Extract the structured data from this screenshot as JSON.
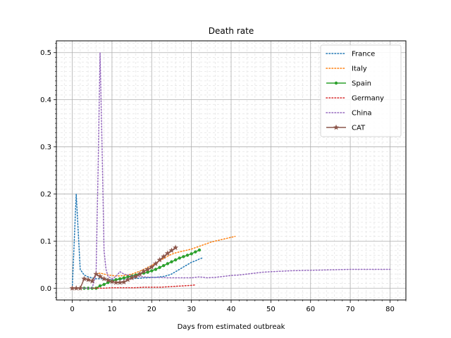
{
  "chart_data": {
    "type": "line",
    "title": "Death rate",
    "xlabel": "Days from estimated outbreak",
    "ylabel": "",
    "xlim": [
      -4,
      84
    ],
    "ylim": [
      -0.025,
      0.525
    ],
    "xticks": [
      0,
      10,
      20,
      30,
      40,
      50,
      60,
      70,
      80
    ],
    "yticks": [
      0.0,
      0.1,
      0.2,
      0.3,
      0.4,
      0.5
    ],
    "xtick_labels": [
      "0",
      "10",
      "20",
      "30",
      "40",
      "50",
      "60",
      "70",
      "80"
    ],
    "ytick_labels": [
      "0.0",
      "0.1",
      "0.2",
      "0.3",
      "0.4",
      "0.5"
    ],
    "grid": true,
    "minor_grid": true,
    "legend_position": "top-right",
    "series": [
      {
        "name": "France",
        "color": "#1f77b4",
        "style": "dotted",
        "marker": "none",
        "x": [
          0,
          1,
          2,
          3,
          4,
          5,
          6,
          7,
          8,
          9,
          10,
          11,
          12,
          13,
          14,
          15,
          16,
          17,
          18,
          19,
          20,
          21,
          22,
          23,
          24,
          25,
          26,
          27,
          28,
          29,
          30,
          31,
          32,
          33
        ],
        "y": [
          0.0,
          0.2,
          0.04,
          0.028,
          0.024,
          0.022,
          0.02,
          0.02,
          0.02,
          0.019,
          0.018,
          0.018,
          0.019,
          0.019,
          0.02,
          0.02,
          0.021,
          0.021,
          0.022,
          0.022,
          0.023,
          0.023,
          0.024,
          0.025,
          0.027,
          0.03,
          0.035,
          0.04,
          0.045,
          0.05,
          0.055,
          0.058,
          0.062,
          0.065
        ]
      },
      {
        "name": "Italy",
        "color": "#ff7f0e",
        "style": "dotted",
        "marker": "none",
        "x": [
          6,
          7,
          8,
          9,
          10,
          11,
          12,
          13,
          14,
          15,
          16,
          17,
          18,
          19,
          20,
          21,
          22,
          23,
          24,
          25,
          26,
          27,
          28,
          29,
          30,
          31,
          32,
          33,
          34,
          35,
          36,
          37,
          38,
          39,
          40,
          41
        ],
        "y": [
          0.03,
          0.032,
          0.03,
          0.028,
          0.027,
          0.026,
          0.026,
          0.027,
          0.028,
          0.03,
          0.033,
          0.036,
          0.04,
          0.044,
          0.048,
          0.053,
          0.058,
          0.063,
          0.068,
          0.072,
          0.075,
          0.077,
          0.079,
          0.081,
          0.083,
          0.086,
          0.089,
          0.092,
          0.095,
          0.098,
          0.1,
          0.102,
          0.104,
          0.106,
          0.108,
          0.11
        ]
      },
      {
        "name": "Spain",
        "color": "#2ca02c",
        "style": "solid",
        "marker": "dot",
        "x": [
          3,
          4,
          5,
          6,
          7,
          8,
          9,
          10,
          11,
          12,
          13,
          14,
          15,
          16,
          17,
          18,
          19,
          20,
          21,
          22,
          23,
          24,
          25,
          26,
          27,
          28,
          29,
          30,
          31,
          32
        ],
        "y": [
          0.0,
          0.0,
          0.0,
          0.0,
          0.005,
          0.008,
          0.012,
          0.015,
          0.018,
          0.02,
          0.022,
          0.024,
          0.026,
          0.028,
          0.03,
          0.032,
          0.034,
          0.037,
          0.04,
          0.044,
          0.048,
          0.052,
          0.056,
          0.06,
          0.064,
          0.067,
          0.07,
          0.073,
          0.077,
          0.081
        ]
      },
      {
        "name": "Germany",
        "color": "#d62728",
        "style": "dotted",
        "marker": "none",
        "x": [
          0,
          2,
          4,
          6,
          8,
          10,
          12,
          14,
          16,
          18,
          20,
          22,
          24,
          26,
          28,
          30,
          31
        ],
        "y": [
          0.0,
          0.0,
          0.0,
          0.0,
          0.0,
          0.001,
          0.001,
          0.001,
          0.001,
          0.002,
          0.002,
          0.002,
          0.003,
          0.004,
          0.005,
          0.006,
          0.007
        ]
      },
      {
        "name": "China",
        "color": "#9467bd",
        "style": "dotted",
        "marker": "none",
        "x": [
          0,
          2,
          4,
          5,
          6,
          6.5,
          7,
          7.5,
          8,
          8.5,
          9,
          10,
          11,
          12,
          13,
          14,
          16,
          18,
          20,
          22,
          24,
          26,
          28,
          30,
          32,
          34,
          36,
          38,
          40,
          42,
          44,
          46,
          48,
          50,
          55,
          60,
          65,
          70,
          75,
          80
        ],
        "y": [
          0.0,
          0.0,
          0.0,
          0.0,
          0.03,
          0.25,
          0.5,
          0.3,
          0.08,
          0.04,
          0.025,
          0.02,
          0.025,
          0.035,
          0.03,
          0.028,
          0.025,
          0.024,
          0.023,
          0.023,
          0.022,
          0.022,
          0.022,
          0.022,
          0.024,
          0.022,
          0.023,
          0.025,
          0.027,
          0.028,
          0.03,
          0.032,
          0.034,
          0.035,
          0.037,
          0.038,
          0.039,
          0.04,
          0.04,
          0.04
        ]
      },
      {
        "name": "CAT",
        "color": "#8c564b",
        "style": "solid",
        "marker": "star",
        "x": [
          0,
          1,
          2,
          3,
          4,
          5,
          6,
          7,
          8,
          9,
          10,
          11,
          12,
          13,
          14,
          15,
          16,
          17,
          18,
          19,
          20,
          21,
          22,
          23,
          24,
          25,
          26
        ],
        "y": [
          0.0,
          0.0,
          0.0,
          0.02,
          0.018,
          0.015,
          0.03,
          0.025,
          0.02,
          0.017,
          0.014,
          0.012,
          0.012,
          0.013,
          0.018,
          0.022,
          0.025,
          0.03,
          0.036,
          0.04,
          0.045,
          0.052,
          0.06,
          0.067,
          0.074,
          0.08,
          0.086
        ]
      }
    ]
  }
}
